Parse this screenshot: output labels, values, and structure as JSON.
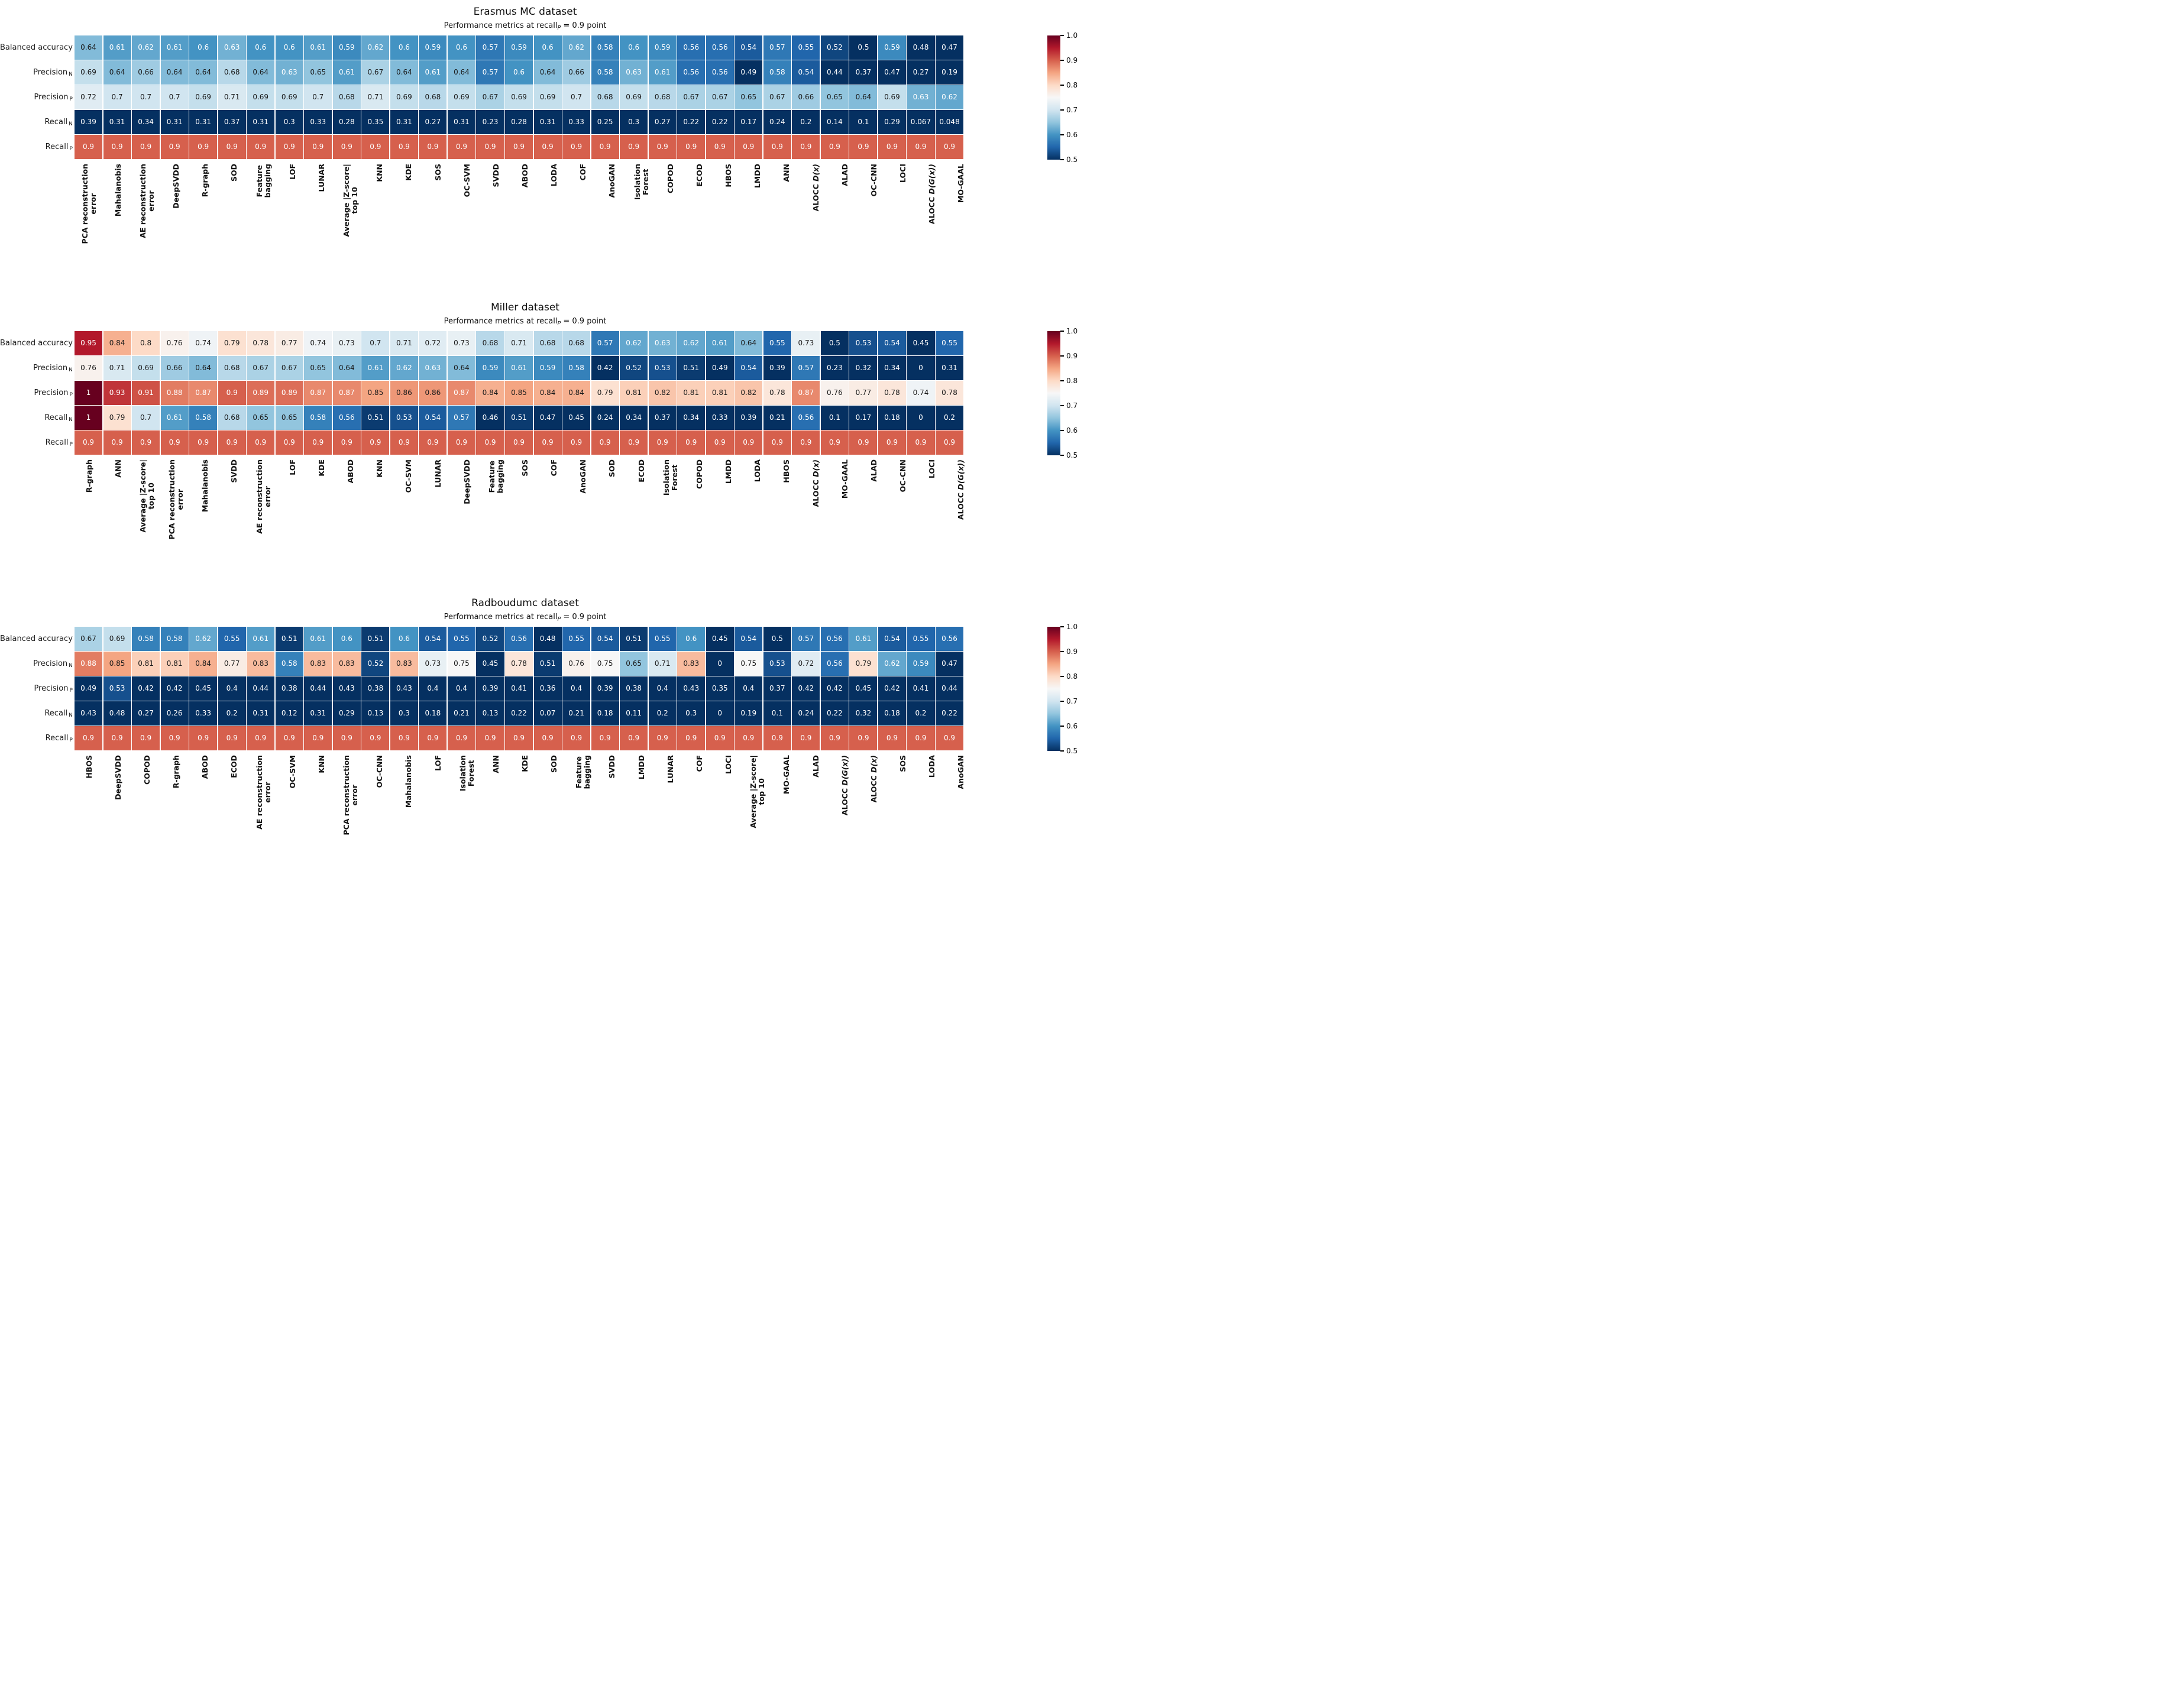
{
  "colorbar": {
    "tick_labels": [
      "1.0",
      "0.9",
      "0.8",
      "0.7",
      "0.6",
      "0.5"
    ],
    "gradient_colors": [
      "#67001f",
      "#b2182b",
      "#d6604d",
      "#f4a582",
      "#fddbc7",
      "#f7f7f7",
      "#d1e5f0",
      "#92c5de",
      "#4393c3",
      "#2166ac",
      "#053061"
    ],
    "vmin": 0.5,
    "vmax": 1.0
  },
  "subtitle_parts": {
    "prefix": "Performance metrics at recall",
    "sub": "P",
    "suffix": " = 0.9 point"
  },
  "row_labels": [
    {
      "text": "Balanced accuracy",
      "sub": ""
    },
    {
      "text": "Precision",
      "sub": "N"
    },
    {
      "text": "Precision",
      "sub": "P"
    },
    {
      "text": "Recall",
      "sub": "N"
    },
    {
      "text": "Recall",
      "sub": "P"
    }
  ],
  "chart_data": [
    {
      "type": "heatmap",
      "title": "Erasmus MC dataset",
      "subtitle": "Performance metrics at recall_P = 0.9 point",
      "colormap": "RdBu_r",
      "vmin": 0.5,
      "vmax": 1.0,
      "rows": [
        "Balanced accuracy",
        "Precision_N",
        "Precision_P",
        "Recall_N",
        "Recall_P"
      ],
      "columns": [
        "PCA reconstruction\nerror",
        "Mahalanobis",
        "AE reconstruction\nerror",
        "DeepSVDD",
        "R-graph",
        "SOD",
        "Feature\nbagging",
        "LOF",
        "LUNAR",
        "Average |Z-score|\ntop 10",
        "KNN",
        "KDE",
        "SOS",
        "OC-SVM",
        "SVDD",
        "ABOD",
        "LODA",
        "COF",
        "AnoGAN",
        "Isolation\nForest",
        "COPOD",
        "ECOD",
        "HBOS",
        "LMDD",
        "ANN",
        "ALOCC D(x)",
        "ALAD",
        "OC-CNN",
        "LOCI",
        "ALOCC D(G(x))",
        "MO-GAAL"
      ],
      "values": [
        [
          0.64,
          0.61,
          0.62,
          0.61,
          0.6,
          0.63,
          0.6,
          0.6,
          0.61,
          0.59,
          0.62,
          0.6,
          0.59,
          0.6,
          0.57,
          0.59,
          0.6,
          0.62,
          0.58,
          0.6,
          0.59,
          0.56,
          0.56,
          0.54,
          0.57,
          0.55,
          0.52,
          0.5,
          0.59,
          0.48,
          0.47
        ],
        [
          0.69,
          0.64,
          0.66,
          0.64,
          0.64,
          0.68,
          0.64,
          0.63,
          0.65,
          0.61,
          0.67,
          0.64,
          0.61,
          0.64,
          0.57,
          0.6,
          0.64,
          0.66,
          0.58,
          0.63,
          0.61,
          0.56,
          0.56,
          0.49,
          0.58,
          0.54,
          0.44,
          0.37,
          0.47,
          0.27,
          0.19
        ],
        [
          0.72,
          0.7,
          0.7,
          0.7,
          0.69,
          0.71,
          0.69,
          0.69,
          0.7,
          0.68,
          0.71,
          0.69,
          0.68,
          0.69,
          0.67,
          0.69,
          0.69,
          0.7,
          0.68,
          0.69,
          0.68,
          0.67,
          0.67,
          0.65,
          0.67,
          0.66,
          0.65,
          0.64,
          0.69,
          0.63,
          0.62
        ],
        [
          0.39,
          0.31,
          0.34,
          0.31,
          0.31,
          0.37,
          0.31,
          0.3,
          0.33,
          0.28,
          0.35,
          0.31,
          0.27,
          0.31,
          0.23,
          0.28,
          0.31,
          0.33,
          0.25,
          0.3,
          0.27,
          0.22,
          0.22,
          0.17,
          0.24,
          0.2,
          0.14,
          0.1,
          0.29,
          0.067,
          0.048
        ],
        [
          0.9,
          0.9,
          0.9,
          0.9,
          0.9,
          0.9,
          0.9,
          0.9,
          0.9,
          0.9,
          0.9,
          0.9,
          0.9,
          0.9,
          0.9,
          0.9,
          0.9,
          0.9,
          0.9,
          0.9,
          0.9,
          0.9,
          0.9,
          0.9,
          0.9,
          0.9,
          0.9,
          0.9,
          0.9,
          0.9,
          0.9
        ]
      ]
    },
    {
      "type": "heatmap",
      "title": "Miller dataset",
      "subtitle": "Performance metrics at recall_P = 0.9 point",
      "colormap": "RdBu_r",
      "vmin": 0.5,
      "vmax": 1.0,
      "rows": [
        "Balanced accuracy",
        "Precision_N",
        "Precision_P",
        "Recall_N",
        "Recall_P"
      ],
      "columns": [
        "R-graph",
        "ANN",
        "Average |Z-score|\ntop 10",
        "PCA reconstruction\nerror",
        "Mahalanobis",
        "SVDD",
        "AE reconstruction\nerror",
        "LOF",
        "KDE",
        "ABOD",
        "KNN",
        "OC-SVM",
        "LUNAR",
        "DeepSVDD",
        "Feature\nbagging",
        "SOS",
        "COF",
        "AnoGAN",
        "SOD",
        "ECOD",
        "Isolation\nForest",
        "COPOD",
        "LMDD",
        "LODA",
        "HBOS",
        "ALOCC D(x)",
        "MO-GAAL",
        "ALAD",
        "OC-CNN",
        "LOCI",
        "ALOCC D(G(x))"
      ],
      "values": [
        [
          0.95,
          0.84,
          0.8,
          0.76,
          0.74,
          0.79,
          0.78,
          0.77,
          0.74,
          0.73,
          0.7,
          0.71,
          0.72,
          0.73,
          0.68,
          0.71,
          0.68,
          0.68,
          0.57,
          0.62,
          0.63,
          0.62,
          0.61,
          0.64,
          0.55,
          0.73,
          0.5,
          0.53,
          0.54,
          0.45,
          0.55
        ],
        [
          0.76,
          0.71,
          0.69,
          0.66,
          0.64,
          0.68,
          0.67,
          0.67,
          0.65,
          0.64,
          0.61,
          0.62,
          0.63,
          0.64,
          0.59,
          0.61,
          0.59,
          0.58,
          0.42,
          0.52,
          0.53,
          0.51,
          0.49,
          0.54,
          0.39,
          0.57,
          0.23,
          0.32,
          0.34,
          0,
          0.31
        ],
        [
          1,
          0.93,
          0.91,
          0.88,
          0.87,
          0.9,
          0.89,
          0.89,
          0.87,
          0.87,
          0.85,
          0.86,
          0.86,
          0.87,
          0.84,
          0.85,
          0.84,
          0.84,
          0.79,
          0.81,
          0.82,
          0.81,
          0.81,
          0.82,
          0.78,
          0.87,
          0.76,
          0.77,
          0.78,
          0.74,
          0.78
        ],
        [
          1,
          0.79,
          0.7,
          0.61,
          0.58,
          0.68,
          0.65,
          0.65,
          0.58,
          0.56,
          0.51,
          0.53,
          0.54,
          0.57,
          0.46,
          0.51,
          0.47,
          0.45,
          0.24,
          0.34,
          0.37,
          0.34,
          0.33,
          0.39,
          0.21,
          0.56,
          0.1,
          0.17,
          0.18,
          0,
          0.2
        ],
        [
          0.9,
          0.9,
          0.9,
          0.9,
          0.9,
          0.9,
          0.9,
          0.9,
          0.9,
          0.9,
          0.9,
          0.9,
          0.9,
          0.9,
          0.9,
          0.9,
          0.9,
          0.9,
          0.9,
          0.9,
          0.9,
          0.9,
          0.9,
          0.9,
          0.9,
          0.9,
          0.9,
          0.9,
          0.9,
          0.9,
          0.9
        ]
      ]
    },
    {
      "type": "heatmap",
      "title": "Radboudumc dataset",
      "subtitle": "Performance metrics at recall_P = 0.9 point",
      "colormap": "RdBu_r",
      "vmin": 0.5,
      "vmax": 1.0,
      "rows": [
        "Balanced accuracy",
        "Precision_N",
        "Precision_P",
        "Recall_N",
        "Recall_P"
      ],
      "columns": [
        "HBOS",
        "DeepSVDD",
        "COPOD",
        "R-graph",
        "ABOD",
        "ECOD",
        "AE reconstruction\nerror",
        "OC-SVM",
        "KNN",
        "PCA reconstruction\nerror",
        "OC-CNN",
        "Mahalanobis",
        "LOF",
        "Isolation\nForest",
        "ANN",
        "KDE",
        "SOD",
        "Feature\nbagging",
        "SVDD",
        "LMDD",
        "LUNAR",
        "COF",
        "LOCI",
        "Average |Z-score|\ntop 10",
        "MO-GAAL",
        "ALAD",
        "ALOCC D(G(x))",
        "ALOCC D(x)",
        "SOS",
        "LODA",
        "AnoGAN"
      ],
      "values": [
        [
          0.67,
          0.69,
          0.58,
          0.58,
          0.62,
          0.55,
          0.61,
          0.51,
          0.61,
          0.6,
          0.51,
          0.6,
          0.54,
          0.55,
          0.52,
          0.56,
          0.48,
          0.55,
          0.54,
          0.51,
          0.55,
          0.6,
          0.45,
          0.54,
          0.5,
          0.57,
          0.56,
          0.61,
          0.54,
          0.55,
          0.56
        ],
        [
          0.88,
          0.85,
          0.81,
          0.81,
          0.84,
          0.77,
          0.83,
          0.58,
          0.83,
          0.83,
          0.52,
          0.83,
          0.73,
          0.75,
          0.45,
          0.78,
          0.51,
          0.76,
          0.75,
          0.65,
          0.71,
          0.83,
          0,
          0.75,
          0.53,
          0.72,
          0.56,
          0.79,
          0.62,
          0.59,
          0.47
        ],
        [
          0.49,
          0.53,
          0.42,
          0.42,
          0.45,
          0.4,
          0.44,
          0.38,
          0.44,
          0.43,
          0.38,
          0.43,
          0.4,
          0.4,
          0.39,
          0.41,
          0.36,
          0.4,
          0.39,
          0.38,
          0.4,
          0.43,
          0.35,
          0.4,
          0.37,
          0.42,
          0.42,
          0.45,
          0.42,
          0.41,
          0.44
        ],
        [
          0.43,
          0.48,
          0.27,
          0.26,
          0.33,
          0.2,
          0.31,
          0.12,
          0.31,
          0.29,
          0.13,
          0.3,
          0.18,
          0.21,
          0.13,
          0.22,
          0.07,
          0.21,
          0.18,
          0.11,
          0.2,
          0.3,
          0,
          0.19,
          0.1,
          0.24,
          0.22,
          0.32,
          0.18,
          0.2,
          0.22
        ],
        [
          0.9,
          0.9,
          0.9,
          0.9,
          0.9,
          0.9,
          0.9,
          0.9,
          0.9,
          0.9,
          0.9,
          0.9,
          0.9,
          0.9,
          0.9,
          0.9,
          0.9,
          0.9,
          0.9,
          0.9,
          0.9,
          0.9,
          0.9,
          0.9,
          0.9,
          0.9,
          0.9,
          0.9,
          0.9,
          0.9,
          0.9
        ]
      ]
    }
  ]
}
